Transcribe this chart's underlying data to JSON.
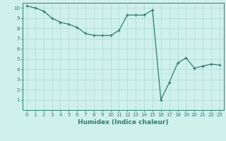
{
  "x": [
    0,
    1,
    2,
    3,
    4,
    5,
    6,
    7,
    8,
    9,
    10,
    11,
    12,
    13,
    14,
    15,
    16,
    17,
    18,
    19,
    20,
    21,
    22,
    23
  ],
  "y": [
    10.2,
    10.0,
    9.7,
    9.0,
    8.6,
    8.4,
    8.1,
    7.5,
    7.3,
    7.3,
    7.3,
    7.8,
    9.3,
    9.3,
    9.3,
    9.8,
    1.0,
    2.7,
    4.6,
    5.1,
    4.1,
    4.3,
    4.5,
    4.4
  ],
  "xlabel": "Humidex (Indice chaleur)",
  "ylim": [
    0,
    10.5
  ],
  "xlim": [
    -0.5,
    23.5
  ],
  "yticks": [
    1,
    2,
    3,
    4,
    5,
    6,
    7,
    8,
    9,
    10
  ],
  "xticks": [
    0,
    1,
    2,
    3,
    4,
    5,
    6,
    7,
    8,
    9,
    10,
    11,
    12,
    13,
    14,
    15,
    16,
    17,
    18,
    19,
    20,
    21,
    22,
    23
  ],
  "line_color": "#2e7d6e",
  "bg_color": "#cff0eb",
  "grid_color": "#aaddd6",
  "tick_color": "#2e7d6e",
  "label_color": "#2e7d6e",
  "tick_fontsize": 5.0,
  "xlabel_fontsize": 6.5
}
